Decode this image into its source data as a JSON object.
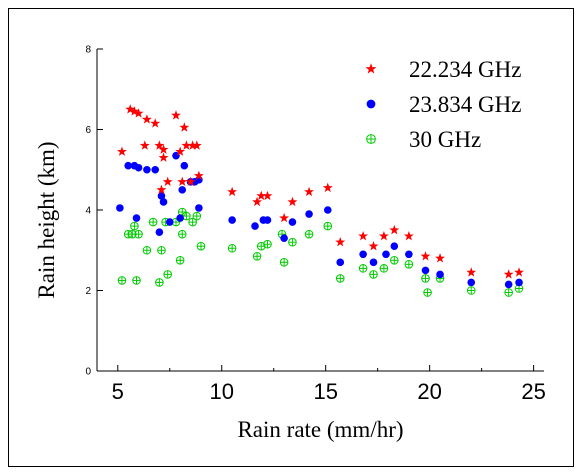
{
  "chart_data": {
    "type": "scatter",
    "title": "",
    "xlabel": "Rain rate (mm/hr)",
    "ylabel": "Rain height (km)",
    "xlim": [
      4,
      25.5
    ],
    "ylim": [
      0,
      8
    ],
    "xticks": [
      5,
      10,
      15,
      20,
      25
    ],
    "yticks": [
      0,
      2,
      4,
      6,
      8
    ],
    "grid": false,
    "legend_position": "top-right",
    "series": [
      {
        "name": "22.234 GHz",
        "marker": "star",
        "color": "#ff0000",
        "points": [
          [
            5.2,
            5.45
          ],
          [
            5.6,
            6.5
          ],
          [
            5.8,
            6.45
          ],
          [
            6.0,
            6.4
          ],
          [
            6.3,
            5.6
          ],
          [
            6.4,
            6.25
          ],
          [
            6.8,
            6.15
          ],
          [
            7.0,
            5.6
          ],
          [
            7.1,
            4.5
          ],
          [
            7.2,
            5.5
          ],
          [
            7.2,
            5.3
          ],
          [
            7.4,
            4.7
          ],
          [
            7.8,
            6.35
          ],
          [
            8.0,
            5.45
          ],
          [
            8.1,
            4.7
          ],
          [
            8.2,
            6.05
          ],
          [
            8.3,
            5.6
          ],
          [
            8.5,
            4.7
          ],
          [
            8.6,
            5.6
          ],
          [
            8.8,
            5.6
          ],
          [
            8.9,
            4.85
          ],
          [
            10.5,
            4.45
          ],
          [
            11.7,
            4.2
          ],
          [
            11.9,
            4.35
          ],
          [
            12.2,
            4.35
          ],
          [
            13.0,
            3.8
          ],
          [
            13.4,
            4.2
          ],
          [
            14.2,
            4.45
          ],
          [
            15.1,
            4.55
          ],
          [
            15.7,
            3.2
          ],
          [
            16.8,
            3.35
          ],
          [
            17.3,
            3.1
          ],
          [
            17.8,
            3.35
          ],
          [
            18.3,
            3.5
          ],
          [
            19.0,
            3.35
          ],
          [
            19.8,
            2.85
          ],
          [
            20.5,
            2.8
          ],
          [
            22.0,
            2.45
          ],
          [
            23.8,
            2.4
          ],
          [
            24.3,
            2.45
          ]
        ]
      },
      {
        "name": "23.834 GHz",
        "marker": "circle",
        "color": "#0000ff",
        "points": [
          [
            5.1,
            4.05
          ],
          [
            5.5,
            5.1
          ],
          [
            5.8,
            5.1
          ],
          [
            5.9,
            3.8
          ],
          [
            6.0,
            5.05
          ],
          [
            6.4,
            5.0
          ],
          [
            6.8,
            5.0
          ],
          [
            7.0,
            3.45
          ],
          [
            7.1,
            4.35
          ],
          [
            7.2,
            4.2
          ],
          [
            7.5,
            3.7
          ],
          [
            7.8,
            5.35
          ],
          [
            8.0,
            3.8
          ],
          [
            8.1,
            4.5
          ],
          [
            8.2,
            5.1
          ],
          [
            8.5,
            4.7
          ],
          [
            8.7,
            4.7
          ],
          [
            8.9,
            4.75
          ],
          [
            8.9,
            4.05
          ],
          [
            10.5,
            3.75
          ],
          [
            11.6,
            3.6
          ],
          [
            12.0,
            3.75
          ],
          [
            12.2,
            3.75
          ],
          [
            13.0,
            3.3
          ],
          [
            13.4,
            3.7
          ],
          [
            14.2,
            3.9
          ],
          [
            15.1,
            4.0
          ],
          [
            15.7,
            2.7
          ],
          [
            16.8,
            2.9
          ],
          [
            17.3,
            2.7
          ],
          [
            17.9,
            2.9
          ],
          [
            18.3,
            3.1
          ],
          [
            19.0,
            2.9
          ],
          [
            19.8,
            2.5
          ],
          [
            20.5,
            2.4
          ],
          [
            22.0,
            2.2
          ],
          [
            23.8,
            2.15
          ],
          [
            24.3,
            2.2
          ]
        ]
      },
      {
        "name": "30 GHz",
        "marker": "circle-plus",
        "color": "#00cc00",
        "points": [
          [
            5.2,
            2.25
          ],
          [
            5.5,
            3.4
          ],
          [
            5.7,
            3.4
          ],
          [
            5.8,
            3.6
          ],
          [
            5.9,
            2.25
          ],
          [
            6.0,
            3.4
          ],
          [
            6.4,
            3.0
          ],
          [
            6.7,
            3.7
          ],
          [
            7.0,
            2.2
          ],
          [
            7.1,
            3.0
          ],
          [
            7.3,
            3.7
          ],
          [
            7.4,
            2.4
          ],
          [
            7.8,
            3.7
          ],
          [
            8.0,
            2.75
          ],
          [
            8.1,
            3.4
          ],
          [
            8.1,
            3.95
          ],
          [
            8.3,
            3.85
          ],
          [
            8.6,
            3.7
          ],
          [
            8.8,
            3.85
          ],
          [
            9.0,
            3.1
          ],
          [
            10.5,
            3.05
          ],
          [
            11.7,
            2.85
          ],
          [
            11.9,
            3.1
          ],
          [
            12.2,
            3.15
          ],
          [
            12.9,
            3.4
          ],
          [
            13.0,
            2.7
          ],
          [
            13.4,
            3.2
          ],
          [
            14.2,
            3.4
          ],
          [
            15.1,
            3.6
          ],
          [
            15.7,
            2.3
          ],
          [
            16.8,
            2.55
          ],
          [
            17.3,
            2.4
          ],
          [
            17.8,
            2.55
          ],
          [
            18.3,
            2.75
          ],
          [
            19.0,
            2.65
          ],
          [
            19.8,
            2.3
          ],
          [
            19.9,
            1.95
          ],
          [
            20.5,
            2.3
          ],
          [
            22.0,
            2.0
          ],
          [
            23.8,
            1.95
          ],
          [
            24.3,
            2.05
          ]
        ]
      }
    ]
  }
}
